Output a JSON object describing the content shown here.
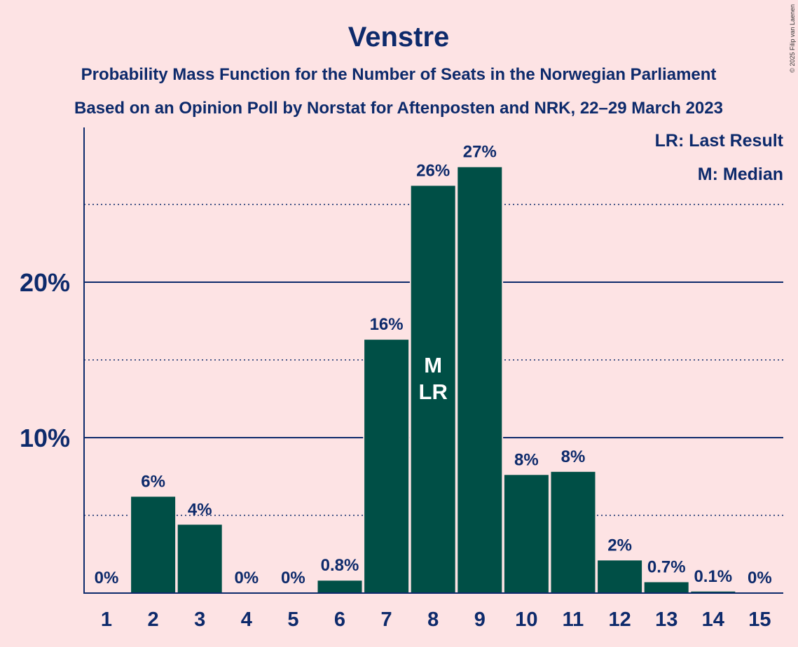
{
  "copyright": "© 2025 Filip van Laenen",
  "legend": {
    "last_result": "LR: Last Result",
    "median": "M: Median"
  },
  "colors": {
    "background": "#fde3e4",
    "bar": "#004f46",
    "text": "#0d2a6b"
  },
  "chart_data": {
    "type": "bar",
    "title": "Venstre",
    "subtitle": "Probability Mass Function for the Number of Seats in the Norwegian Parliament",
    "subtitle2": "Based on an Opinion Poll by Norstat for Aftenposten and NRK, 22–29 March 2023",
    "xlabel": "",
    "ylabel": "",
    "categories": [
      "1",
      "2",
      "3",
      "4",
      "5",
      "6",
      "7",
      "8",
      "9",
      "10",
      "11",
      "12",
      "13",
      "14",
      "15"
    ],
    "values": [
      0,
      6.2,
      4.4,
      0,
      0,
      0.8,
      16.3,
      26.2,
      27.4,
      7.6,
      7.8,
      2.1,
      0.7,
      0.1,
      0
    ],
    "data_labels": [
      "0%",
      "6%",
      "4%",
      "0%",
      "0%",
      "0.8%",
      "16%",
      "26%",
      "27%",
      "8%",
      "8%",
      "2%",
      "0.7%",
      "0.1%",
      "0%"
    ],
    "bar_markers": {
      "8": [
        "M",
        "LR"
      ]
    },
    "ylim": [
      0,
      30
    ],
    "yticks": [
      {
        "value": 10,
        "label": "10%"
      },
      {
        "value": 20,
        "label": "20%"
      }
    ],
    "grid": {
      "solid": [
        10,
        20
      ],
      "dotted": [
        5,
        15,
        25
      ]
    },
    "legend_position": "top-right"
  }
}
